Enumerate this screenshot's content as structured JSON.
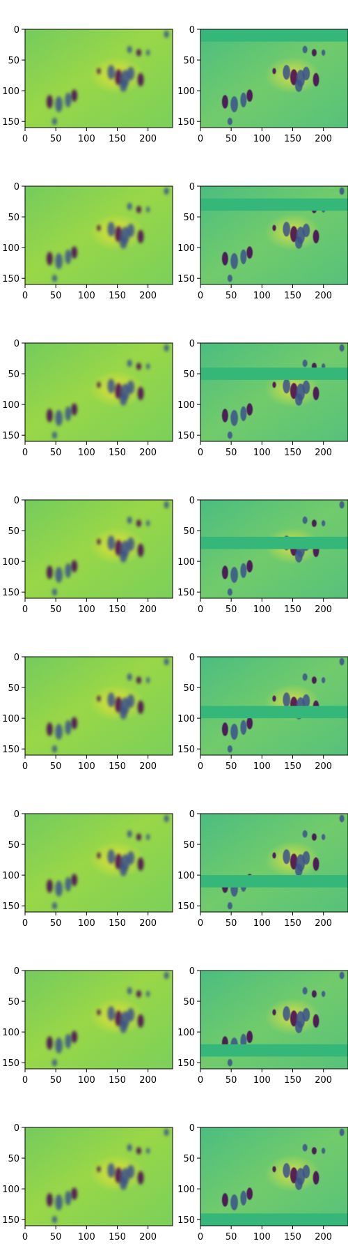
{
  "chart_data": {
    "type": "heatmap",
    "layout": {
      "rows": 8,
      "cols": 2
    },
    "colormap": "viridis",
    "image_size": {
      "width": 240,
      "height": 160
    },
    "xlim": [
      0,
      240
    ],
    "ylim": [
      160,
      0
    ],
    "xticks": [
      0,
      50,
      100,
      150,
      200
    ],
    "yticks": [
      0,
      50,
      100,
      150
    ],
    "xtick_labels": [
      "0",
      "50",
      "100",
      "150",
      "200"
    ],
    "ytick_labels": [
      "0",
      "50",
      "100",
      "150"
    ],
    "masked_band_rows": [
      [
        0,
        20
      ],
      [
        20,
        40
      ],
      [
        40,
        60
      ],
      [
        60,
        80
      ],
      [
        80,
        100
      ],
      [
        100,
        120
      ],
      [
        120,
        140
      ],
      [
        140,
        160
      ]
    ],
    "panels": [
      {
        "row": 0,
        "col": 0,
        "content": "reconstruction"
      },
      {
        "row": 0,
        "col": 1,
        "content": "masked input"
      },
      {
        "row": 1,
        "col": 0,
        "content": "reconstruction"
      },
      {
        "row": 1,
        "col": 1,
        "content": "masked input"
      },
      {
        "row": 2,
        "col": 0,
        "content": "reconstruction"
      },
      {
        "row": 2,
        "col": 1,
        "content": "masked input"
      },
      {
        "row": 3,
        "col": 0,
        "content": "reconstruction"
      },
      {
        "row": 3,
        "col": 1,
        "content": "masked input"
      },
      {
        "row": 4,
        "col": 0,
        "content": "reconstruction"
      },
      {
        "row": 4,
        "col": 1,
        "content": "masked input"
      },
      {
        "row": 5,
        "col": 0,
        "content": "reconstruction"
      },
      {
        "row": 5,
        "col": 1,
        "content": "masked input"
      },
      {
        "row": 6,
        "col": 0,
        "content": "reconstruction"
      },
      {
        "row": 6,
        "col": 1,
        "content": "masked input"
      },
      {
        "row": 7,
        "col": 0,
        "content": "reconstruction"
      },
      {
        "row": 7,
        "col": 1,
        "content": "masked input"
      }
    ],
    "colors": {
      "background_mid": "#7ad151",
      "bright": "#fde725",
      "dark": "#3b528b",
      "darkest": "#440154",
      "mask_fill": "#35b779"
    }
  }
}
